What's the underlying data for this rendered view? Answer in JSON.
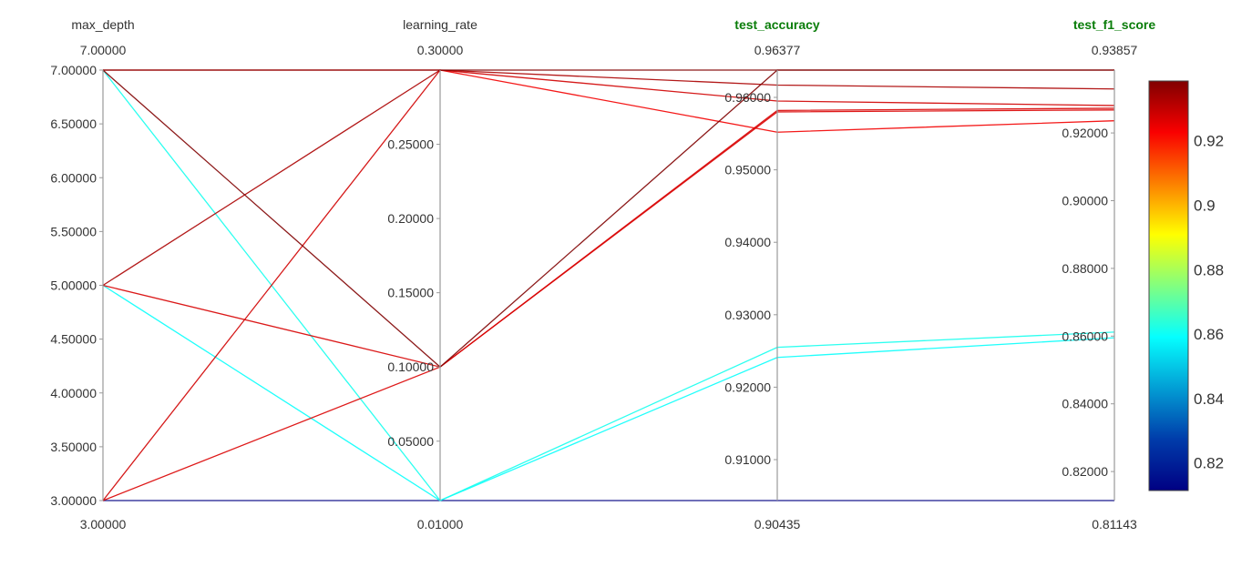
{
  "chart_data": {
    "type": "parallel_coordinates",
    "color_by": "test_f1_score",
    "colorscale": "jet",
    "color_range": [
      0.81143,
      0.93857
    ],
    "dimensions": [
      {
        "key": "max_depth",
        "label": "max_depth",
        "highlight": false,
        "range": [
          3,
          7
        ],
        "top_label": "7.00000",
        "bottom_label": "3.00000",
        "ticks": [
          3,
          3.5,
          4,
          4.5,
          5,
          5.5,
          6,
          6.5,
          7
        ],
        "tick_labels": [
          "3.00000",
          "3.50000",
          "4.00000",
          "4.50000",
          "5.00000",
          "5.50000",
          "6.00000",
          "6.50000",
          "7.00000"
        ]
      },
      {
        "key": "learning_rate",
        "label": "learning_rate",
        "highlight": false,
        "range": [
          0.01,
          0.3
        ],
        "top_label": "0.30000",
        "bottom_label": "0.01000",
        "ticks": [
          0.05,
          0.1,
          0.15,
          0.2,
          0.25
        ],
        "tick_labels": [
          "0.05000",
          "0.10000",
          "0.15000",
          "0.20000",
          "0.25000"
        ]
      },
      {
        "key": "test_accuracy",
        "label": "test_accuracy",
        "highlight": true,
        "range": [
          0.90435,
          0.96377
        ],
        "top_label": "0.96377",
        "bottom_label": "0.90435",
        "ticks": [
          0.91,
          0.92,
          0.93,
          0.94,
          0.95,
          0.96
        ],
        "tick_labels": [
          "0.91000",
          "0.92000",
          "0.93000",
          "0.94000",
          "0.95000",
          "0.96000"
        ]
      },
      {
        "key": "test_f1_score",
        "label": "test_f1_score",
        "highlight": true,
        "range": [
          0.81143,
          0.93857
        ],
        "top_label": "0.93857",
        "bottom_label": "0.81143",
        "ticks": [
          0.82,
          0.84,
          0.86,
          0.88,
          0.9,
          0.92
        ],
        "tick_labels": [
          "0.82000",
          "0.84000",
          "0.86000",
          "0.88000",
          "0.90000",
          "0.92000"
        ]
      }
    ],
    "rows": [
      {
        "max_depth": 7,
        "learning_rate": 0.3,
        "test_accuracy": 0.96377,
        "test_f1_score": 0.93857
      },
      {
        "max_depth": 7,
        "learning_rate": 0.1,
        "test_accuracy": 0.96377,
        "test_f1_score": 0.93857
      },
      {
        "max_depth": 5,
        "learning_rate": 0.3,
        "test_accuracy": 0.9617,
        "test_f1_score": 0.933
      },
      {
        "max_depth": 3,
        "learning_rate": 0.3,
        "test_accuracy": 0.9595,
        "test_f1_score": 0.9281
      },
      {
        "max_depth": 5,
        "learning_rate": 0.1,
        "test_accuracy": 0.9582,
        "test_f1_score": 0.9273
      },
      {
        "max_depth": 3,
        "learning_rate": 0.1,
        "test_accuracy": 0.958,
        "test_f1_score": 0.9268
      },
      {
        "max_depth": 7,
        "learning_rate": 0.3,
        "test_accuracy": 0.9552,
        "test_f1_score": 0.9236
      },
      {
        "max_depth": 7,
        "learning_rate": 0.01,
        "test_accuracy": 0.9255,
        "test_f1_score": 0.8612
      },
      {
        "max_depth": 5,
        "learning_rate": 0.01,
        "test_accuracy": 0.9241,
        "test_f1_score": 0.8595
      },
      {
        "max_depth": 3,
        "learning_rate": 0.01,
        "test_accuracy": 0.90435,
        "test_f1_score": 0.81143
      }
    ],
    "colorbar": {
      "ticks": [
        0.82,
        0.84,
        0.86,
        0.88,
        0.9,
        0.92
      ],
      "tick_labels": [
        "0.82",
        "0.84",
        "0.86",
        "0.88",
        "0.9",
        "0.92"
      ]
    }
  }
}
